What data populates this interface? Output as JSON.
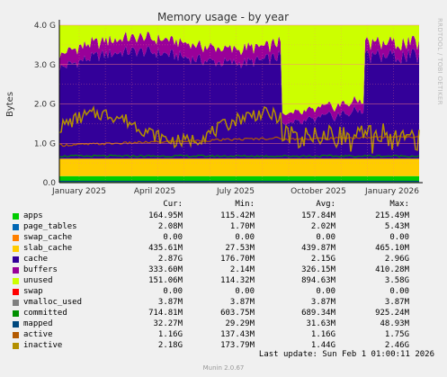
{
  "chart_data": {
    "type": "area",
    "title": "Memory usage - by year",
    "ylabel": "Bytes",
    "ylim": [
      0,
      4000000000
    ],
    "yticks": [
      "0.0",
      "1.0 G",
      "2.0 G",
      "3.0 G",
      "4.0 G"
    ],
    "xticks": [
      "January 2025",
      "April 2025",
      "July 2025",
      "October 2025",
      "January 2026"
    ],
    "grid": true,
    "watermark": "RRDTOOL / TOBI OETIKER",
    "columns": [
      "Cur:",
      "Min:",
      "Avg:",
      "Max:"
    ],
    "series": [
      {
        "name": "apps",
        "color": "#00cc00",
        "values": [
          "164.95M",
          "115.42M",
          "157.84M",
          "215.49M"
        ]
      },
      {
        "name": "page_tables",
        "color": "#0066b3",
        "values": [
          "2.08M",
          "1.70M",
          "2.02M",
          "5.43M"
        ]
      },
      {
        "name": "swap_cache",
        "color": "#ff8000",
        "values": [
          "0.00",
          "0.00",
          "0.00",
          "0.00"
        ]
      },
      {
        "name": "slab_cache",
        "color": "#ffcc00",
        "values": [
          "435.61M",
          "27.53M",
          "439.87M",
          "465.10M"
        ]
      },
      {
        "name": "cache",
        "color": "#330099",
        "values": [
          "2.87G",
          "176.70M",
          "2.15G",
          "2.96G"
        ]
      },
      {
        "name": "buffers",
        "color": "#990099",
        "values": [
          "333.60M",
          "2.14M",
          "326.15M",
          "410.28M"
        ]
      },
      {
        "name": "unused",
        "color": "#ccff00",
        "values": [
          "151.06M",
          "114.32M",
          "894.63M",
          "3.58G"
        ]
      },
      {
        "name": "swap",
        "color": "#ff0000",
        "values": [
          "0.00",
          "0.00",
          "0.00",
          "0.00"
        ]
      },
      {
        "name": "vmalloc_used",
        "color": "#808080",
        "values": [
          "3.87M",
          "3.87M",
          "3.87M",
          "3.87M"
        ]
      },
      {
        "name": "committed",
        "color": "#008f00",
        "values": [
          "714.81M",
          "603.75M",
          "689.34M",
          "925.24M"
        ]
      },
      {
        "name": "mapped",
        "color": "#00487d",
        "values": [
          "32.27M",
          "29.29M",
          "31.63M",
          "48.93M"
        ]
      },
      {
        "name": "active",
        "color": "#b35a00",
        "values": [
          "1.16G",
          "137.43M",
          "1.16G",
          "1.75G"
        ]
      },
      {
        "name": "inactive",
        "color": "#b38f00",
        "values": [
          "2.18G",
          "173.79M",
          "1.44G",
          "2.46G"
        ]
      }
    ]
  },
  "footer": "Last update: Sun Feb  1 01:00:11 2026",
  "munin": "Munin 2.0.67"
}
